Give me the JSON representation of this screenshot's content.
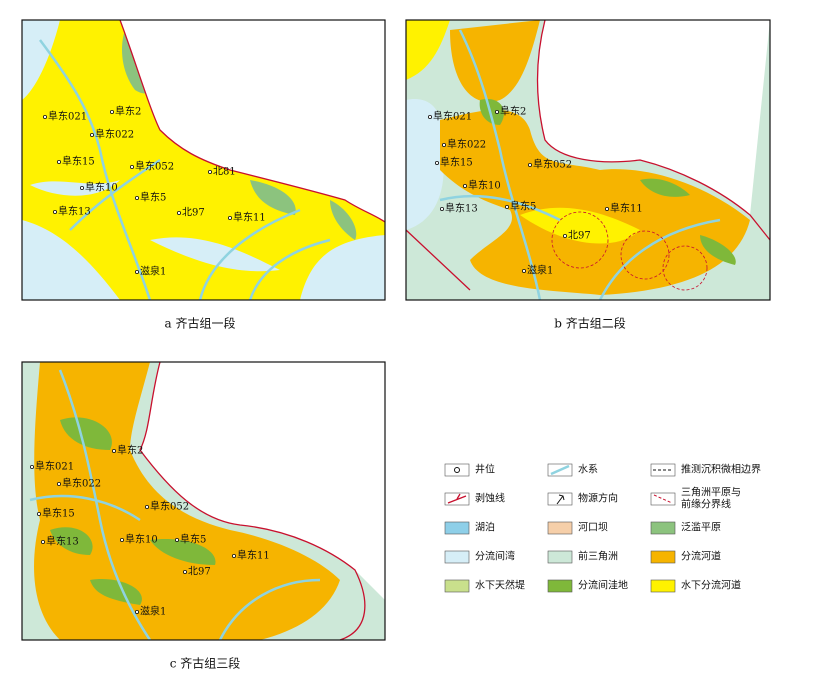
{
  "panels": [
    {
      "caption": "a 齐古组一段",
      "wells": [
        "阜东021",
        "阜东2",
        "阜东022",
        "阜东15",
        "阜东052",
        "北81",
        "阜东10",
        "阜东5",
        "北97",
        "阜东13",
        "阜东11",
        "滋泉1"
      ]
    },
    {
      "caption": "b 齐古组二段",
      "wells": [
        "阜东021",
        "阜东2",
        "阜东022",
        "阜东15",
        "阜东052",
        "阜东10",
        "阜东5",
        "阜东13",
        "阜东11",
        "北97",
        "滋泉1"
      ]
    },
    {
      "caption": "c 齐古组三段",
      "wells": [
        "阜东021",
        "阜东2",
        "阜东022",
        "阜东15",
        "阜东052",
        "阜东13",
        "阜东10",
        "阜东5",
        "阜东11",
        "北97",
        "滋泉1"
      ]
    }
  ],
  "legend": {
    "items": [
      {
        "label": "井位"
      },
      {
        "label": "水系"
      },
      {
        "label": "推测沉积微相边界"
      },
      {
        "label": "剥蚀线"
      },
      {
        "label": "物源方向"
      },
      {
        "label": [
          "三角洲平原与",
          "前缘分界线"
        ]
      },
      {
        "label": "湖泊"
      },
      {
        "label": "河口坝"
      },
      {
        "label": "泛滥平原"
      },
      {
        "label": "分流间湾"
      },
      {
        "label": "前三角洲"
      },
      {
        "label": "分流河道"
      },
      {
        "label": "水下天然堤"
      },
      {
        "label": "分流间洼地"
      },
      {
        "label": "水下分流河道"
      }
    ]
  }
}
